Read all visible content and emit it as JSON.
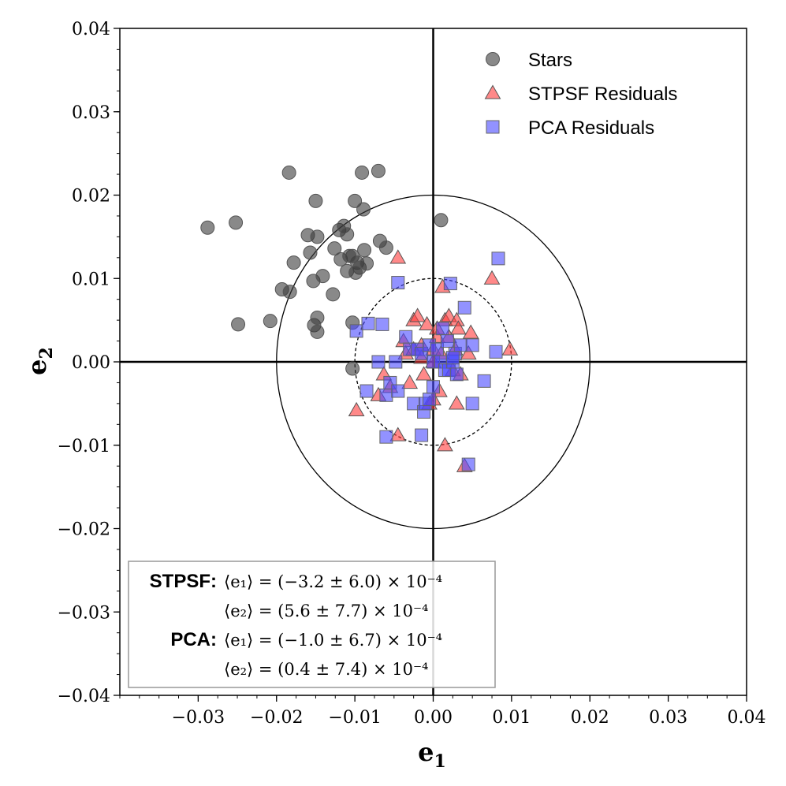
{
  "chart_data": {
    "type": "scatter",
    "title": "",
    "xlabel": "e",
    "xlabel_sub": "1",
    "ylabel": "e",
    "ylabel_sub": "2",
    "xlim": [
      -0.04,
      0.04
    ],
    "ylim": [
      -0.04,
      0.04
    ],
    "xticks": [
      -0.03,
      -0.02,
      -0.01,
      0.0,
      0.01,
      0.02,
      0.03,
      0.04
    ],
    "xtick_labels": [
      "−0.03",
      "−0.02",
      "−0.01",
      "0.00",
      "0.01",
      "0.02",
      "0.03",
      "0.04"
    ],
    "yticks": [
      -0.04,
      -0.03,
      -0.02,
      -0.01,
      0.0,
      0.01,
      0.02,
      0.03,
      0.04
    ],
    "ytick_labels": [
      "−0.04",
      "−0.03",
      "−0.02",
      "−0.01",
      "0.00",
      "0.01",
      "0.02",
      "0.03",
      "0.04"
    ],
    "minor_step": 0.0025,
    "reference_circles": [
      {
        "radius": 0.02,
        "style": "solid"
      },
      {
        "radius": 0.01,
        "style": "dashed"
      }
    ],
    "legend_position": "top-right",
    "series": [
      {
        "name": "Stars",
        "marker": "circle",
        "color": "#3a3a3a",
        "points": [
          [
            -0.0288,
            0.0161
          ],
          [
            -0.0252,
            0.0167
          ],
          [
            -0.0249,
            0.0045
          ],
          [
            -0.0208,
            0.0049
          ],
          [
            -0.0184,
            0.0227
          ],
          [
            -0.0193,
            0.0087
          ],
          [
            -0.0183,
            0.0084
          ],
          [
            -0.0178,
            0.0119
          ],
          [
            -0.016,
            0.0152
          ],
          [
            -0.0157,
            0.0131
          ],
          [
            -0.0153,
            0.0097
          ],
          [
            -0.015,
            0.0193
          ],
          [
            -0.0148,
            0.015
          ],
          [
            -0.0141,
            0.0103
          ],
          [
            -0.0152,
            0.0044
          ],
          [
            -0.0148,
            0.0053
          ],
          [
            -0.0148,
            0.0036
          ],
          [
            -0.0128,
            0.0081
          ],
          [
            -0.0126,
            0.0136
          ],
          [
            -0.012,
            0.0158
          ],
          [
            -0.0114,
            0.0163
          ],
          [
            -0.011,
            0.0153
          ],
          [
            -0.0118,
            0.0123
          ],
          [
            -0.011,
            0.0109
          ],
          [
            -0.0103,
            0.0127
          ],
          [
            -0.01,
            0.0193
          ],
          [
            -0.0097,
            0.0119
          ],
          [
            -0.0094,
            0.0113
          ],
          [
            -0.0091,
            0.0227
          ],
          [
            -0.0089,
            0.0183
          ],
          [
            -0.0088,
            0.0134
          ],
          [
            -0.0085,
            0.0118
          ],
          [
            -0.007,
            0.0229
          ],
          [
            -0.0068,
            0.0145
          ],
          [
            -0.006,
            0.0137
          ],
          [
            -0.0103,
            0.0047
          ],
          [
            -0.0103,
            -0.0008
          ],
          [
            0.001,
            0.017
          ],
          [
            -0.0107,
            0.0127
          ],
          [
            -0.0099,
            0.0107
          ]
        ]
      },
      {
        "name": "STPSF Residuals",
        "marker": "triangle",
        "color": "#ff3b3b",
        "points": [
          [
            -0.0045,
            0.0125
          ],
          [
            -0.0098,
            -0.0058
          ],
          [
            -0.007,
            -0.004
          ],
          [
            -0.0063,
            -0.0015
          ],
          [
            -0.0055,
            -0.003
          ],
          [
            -0.0045,
            -0.0088
          ],
          [
            -0.0038,
            0.0025
          ],
          [
            -0.0035,
            0.001
          ],
          [
            -0.003,
            -0.0025
          ],
          [
            -0.0025,
            0.005
          ],
          [
            -0.002,
            0.0055
          ],
          [
            -0.0015,
            0.002
          ],
          [
            -0.0012,
            -0.0015
          ],
          [
            -0.0008,
            0.0045
          ],
          [
            -0.0005,
            -0.005
          ],
          [
            0.0,
            -0.0045
          ],
          [
            0.0,
            0.0015
          ],
          [
            0.0005,
            0.003
          ],
          [
            0.0008,
            -0.0035
          ],
          [
            0.001,
            0.001
          ],
          [
            0.0012,
            0.009
          ],
          [
            0.0015,
            0.005
          ],
          [
            0.0015,
            -0.01
          ],
          [
            0.002,
            0.003
          ],
          [
            0.002,
            0.0055
          ],
          [
            0.0025,
            -0.001
          ],
          [
            0.0028,
            0.0015
          ],
          [
            0.003,
            -0.005
          ],
          [
            0.003,
            0.005
          ],
          [
            0.0032,
            0.004
          ],
          [
            0.0035,
            -0.0015
          ],
          [
            0.004,
            -0.0125
          ],
          [
            0.0045,
            0.001
          ],
          [
            0.0048,
            0.0035
          ],
          [
            0.0075,
            0.01
          ],
          [
            0.0098,
            0.0015
          ],
          [
            -0.0025,
            0.0015
          ],
          [
            0.0005,
            0.004
          ],
          [
            0.0,
            0.0
          ],
          [
            -0.0015,
            0.0005
          ]
        ]
      },
      {
        "name": "PCA Residuals",
        "marker": "square",
        "color": "#4a4aff",
        "points": [
          [
            -0.0098,
            0.0037
          ],
          [
            -0.0083,
            0.0046
          ],
          [
            -0.0065,
            0.0045
          ],
          [
            -0.0045,
            0.0095
          ],
          [
            -0.0085,
            -0.0035
          ],
          [
            -0.007,
            0.0
          ],
          [
            -0.006,
            -0.004
          ],
          [
            -0.0055,
            -0.0025
          ],
          [
            -0.0048,
            0.0
          ],
          [
            -0.0045,
            -0.0035
          ],
          [
            -0.0035,
            0.003
          ],
          [
            -0.003,
            0.0015
          ],
          [
            -0.0025,
            -0.005
          ],
          [
            -0.002,
            0.0015
          ],
          [
            -0.0015,
            0.001
          ],
          [
            -0.0012,
            -0.006
          ],
          [
            -0.001,
            -0.005
          ],
          [
            -0.0005,
            0.002
          ],
          [
            -0.0005,
            -0.0045
          ],
          [
            0.0,
            0.0
          ],
          [
            0.0,
            -0.003
          ],
          [
            0.0005,
            0.0015
          ],
          [
            0.001,
            0.0
          ],
          [
            0.0012,
            0.004
          ],
          [
            0.0015,
            -0.001
          ],
          [
            0.0018,
            0.0025
          ],
          [
            0.002,
            -0.001
          ],
          [
            0.0022,
            0.0094
          ],
          [
            0.0025,
            0.0
          ],
          [
            0.0028,
            0.001
          ],
          [
            0.003,
            -0.0015
          ],
          [
            0.0035,
            0.002
          ],
          [
            0.004,
            0.0065
          ],
          [
            0.0045,
            -0.0123
          ],
          [
            0.005,
            0.002
          ],
          [
            0.005,
            -0.005
          ],
          [
            0.0065,
            -0.0023
          ],
          [
            0.008,
            0.0012
          ],
          [
            0.0083,
            0.0124
          ],
          [
            -0.006,
            -0.009
          ],
          [
            -0.0015,
            -0.0088
          ],
          [
            0.0025,
            0.0005
          ]
        ]
      }
    ],
    "stats_box": [
      {
        "label": "STPSF:",
        "lines": [
          "⟨e₁⟩ = (−3.2 ± 6.0) × 10⁻⁴",
          "⟨e₂⟩ = (5.6 ± 7.7) × 10⁻⁴"
        ]
      },
      {
        "label": "PCA:",
        "lines": [
          "⟨e₁⟩ = (−1.0 ± 6.7) × 10⁻⁴",
          "⟨e₂⟩ = (0.4 ± 7.4) × 10⁻⁴"
        ]
      }
    ]
  }
}
